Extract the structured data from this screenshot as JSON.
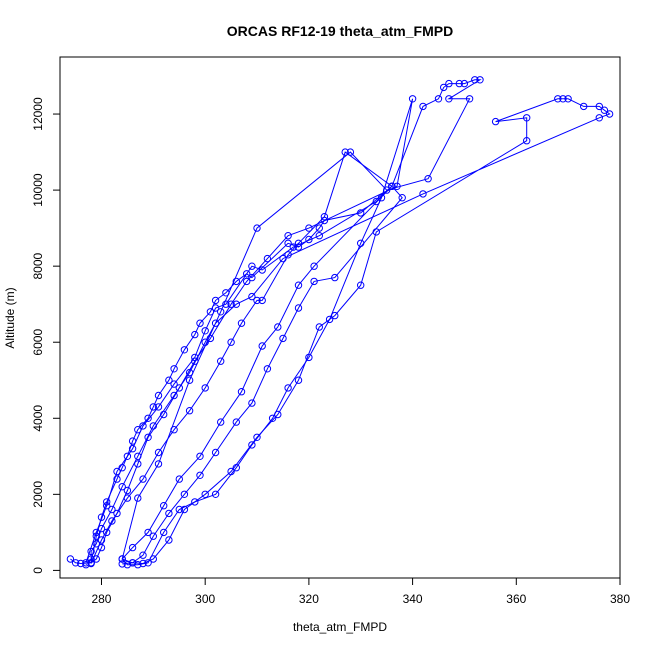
{
  "chart_data": {
    "type": "line",
    "title": "ORCAS RF12-19 theta_atm_FMPD",
    "xlabel": "theta_atm_FMPD",
    "ylabel": "Altitude (m)",
    "xlim": [
      272,
      380
    ],
    "ylim": [
      -200,
      13500
    ],
    "x_ticks": [
      280,
      300,
      320,
      340,
      360,
      380
    ],
    "y_ticks": [
      0,
      2000,
      4000,
      6000,
      8000,
      10000,
      12000
    ],
    "grid": false,
    "legend": "none",
    "marker": "open-circle",
    "color": "#0000ff",
    "series": [
      {
        "points": [
          [
            274,
            300
          ],
          [
            275,
            200
          ],
          [
            276,
            180
          ],
          [
            278,
            200
          ],
          [
            279,
            900
          ],
          [
            280,
            1400
          ],
          [
            281,
            1800
          ],
          [
            283,
            2400
          ],
          [
            284,
            2700
          ],
          [
            285,
            3000
          ],
          [
            286,
            3400
          ],
          [
            287,
            3700
          ],
          [
            289,
            4000
          ],
          [
            290,
            4300
          ],
          [
            291,
            4600
          ],
          [
            293,
            5000
          ],
          [
            294,
            5300
          ],
          [
            296,
            5800
          ],
          [
            298,
            6200
          ],
          [
            299,
            6500
          ],
          [
            301,
            6800
          ],
          [
            302,
            7100
          ],
          [
            304,
            7300
          ],
          [
            306,
            7600
          ],
          [
            308,
            7800
          ],
          [
            309,
            7700
          ],
          [
            316,
            8600
          ],
          [
            318,
            8500
          ],
          [
            320,
            8700
          ],
          [
            322,
            9000
          ],
          [
            323,
            9200
          ],
          [
            330,
            9400
          ],
          [
            336,
            10100
          ],
          [
            342,
            12200
          ],
          [
            345,
            12400
          ],
          [
            346,
            12700
          ],
          [
            347,
            12800
          ],
          [
            349,
            12800
          ],
          [
            350,
            12800
          ],
          [
            352,
            12900
          ],
          [
            353,
            12900
          ],
          [
            347,
            12400
          ],
          [
            351,
            12400
          ],
          [
            343,
            10300
          ],
          [
            335,
            10000
          ],
          [
            328,
            11000
          ],
          [
            310,
            9000
          ],
          [
            303,
            6800
          ],
          [
            297,
            5000
          ],
          [
            291,
            2800
          ],
          [
            287,
            1900
          ],
          [
            284,
            300
          ],
          [
            286,
            200
          ],
          [
            288,
            180
          ],
          [
            290,
            300
          ],
          [
            293,
            800
          ],
          [
            296,
            1600
          ],
          [
            300,
            2000
          ],
          [
            305,
            2600
          ],
          [
            310,
            3500
          ],
          [
            314,
            4100
          ],
          [
            318,
            5000
          ],
          [
            322,
            6400
          ],
          [
            325,
            6700
          ],
          [
            330,
            7500
          ],
          [
            333,
            8900
          ],
          [
            362,
            11300
          ],
          [
            362,
            11900
          ],
          [
            356,
            11800
          ],
          [
            368,
            12400
          ],
          [
            369,
            12400
          ],
          [
            370,
            12400
          ],
          [
            373,
            12200
          ],
          [
            376,
            12200
          ],
          [
            377,
            12100
          ],
          [
            378,
            12000
          ],
          [
            376,
            11900
          ],
          [
            342,
            9900
          ],
          [
            315,
            8200
          ],
          [
            309,
            7200
          ],
          [
            306,
            7000
          ],
          [
            302,
            6500
          ],
          [
            300,
            6000
          ],
          [
            297,
            5200
          ],
          [
            294,
            4600
          ],
          [
            290,
            3800
          ],
          [
            287,
            3000
          ],
          [
            284,
            2200
          ],
          [
            282,
            1600
          ],
          [
            280,
            1100
          ],
          [
            279,
            700
          ],
          [
            278,
            500
          ],
          [
            278,
            300
          ],
          [
            277,
            150
          ]
        ]
      },
      {
        "points": [
          [
            277,
            200
          ],
          [
            279,
            1000
          ],
          [
            281,
            1700
          ],
          [
            283,
            2600
          ],
          [
            286,
            3200
          ],
          [
            288,
            3800
          ],
          [
            291,
            4300
          ],
          [
            294,
            4900
          ],
          [
            298,
            5600
          ],
          [
            300,
            6300
          ],
          [
            302,
            6900
          ],
          [
            304,
            7000
          ],
          [
            309,
            8000
          ],
          [
            311,
            7900
          ],
          [
            317,
            8500
          ],
          [
            322,
            8800
          ],
          [
            333,
            9700
          ],
          [
            336,
            10100
          ],
          [
            321,
            8000
          ],
          [
            318,
            7500
          ],
          [
            314,
            6400
          ],
          [
            311,
            5900
          ],
          [
            307,
            4700
          ],
          [
            303,
            3900
          ],
          [
            299,
            3000
          ],
          [
            295,
            2400
          ],
          [
            292,
            1700
          ],
          [
            289,
            1000
          ],
          [
            286,
            600
          ],
          [
            284,
            300
          ],
          [
            285,
            150
          ],
          [
            287,
            150
          ],
          [
            289,
            200
          ],
          [
            292,
            1000
          ],
          [
            295,
            1600
          ],
          [
            298,
            1800
          ],
          [
            302,
            2000
          ],
          [
            306,
            2700
          ],
          [
            309,
            3300
          ],
          [
            313,
            4000
          ],
          [
            316,
            4800
          ],
          [
            320,
            5600
          ],
          [
            324,
            6600
          ],
          [
            330,
            8600
          ],
          [
            334,
            9800
          ],
          [
            340,
            12400
          ],
          [
            337,
            10100
          ],
          [
            320,
            9000
          ],
          [
            316,
            8800
          ],
          [
            312,
            8200
          ],
          [
            308,
            7600
          ],
          [
            305,
            7000
          ],
          [
            301,
            6100
          ],
          [
            298,
            5500
          ],
          [
            295,
            4800
          ],
          [
            292,
            4100
          ],
          [
            289,
            3500
          ],
          [
            287,
            2800
          ],
          [
            285,
            2100
          ],
          [
            283,
            1500
          ],
          [
            281,
            1000
          ],
          [
            280,
            600
          ],
          [
            279,
            300
          ],
          [
            278,
            200
          ]
        ]
      },
      {
        "points": [
          [
            278,
            180
          ],
          [
            280,
            800
          ],
          [
            282,
            1300
          ],
          [
            285,
            1900
          ],
          [
            288,
            2400
          ],
          [
            291,
            3100
          ],
          [
            294,
            3700
          ],
          [
            297,
            4200
          ],
          [
            300,
            4800
          ],
          [
            303,
            5500
          ],
          [
            305,
            6000
          ],
          [
            307,
            6500
          ],
          [
            310,
            7100
          ],
          [
            311,
            7100
          ],
          [
            316,
            8300
          ],
          [
            318,
            8600
          ],
          [
            323,
            9300
          ],
          [
            327,
            11000
          ],
          [
            336,
            10100
          ],
          [
            338,
            9800
          ],
          [
            325,
            7700
          ],
          [
            321,
            7600
          ],
          [
            318,
            6900
          ],
          [
            315,
            6100
          ],
          [
            312,
            5300
          ],
          [
            309,
            4400
          ],
          [
            306,
            3900
          ],
          [
            302,
            3100
          ],
          [
            299,
            2500
          ],
          [
            296,
            2000
          ],
          [
            293,
            1500
          ],
          [
            290,
            900
          ],
          [
            288,
            400
          ],
          [
            286,
            200
          ],
          [
            284,
            170
          ]
        ]
      }
    ]
  }
}
